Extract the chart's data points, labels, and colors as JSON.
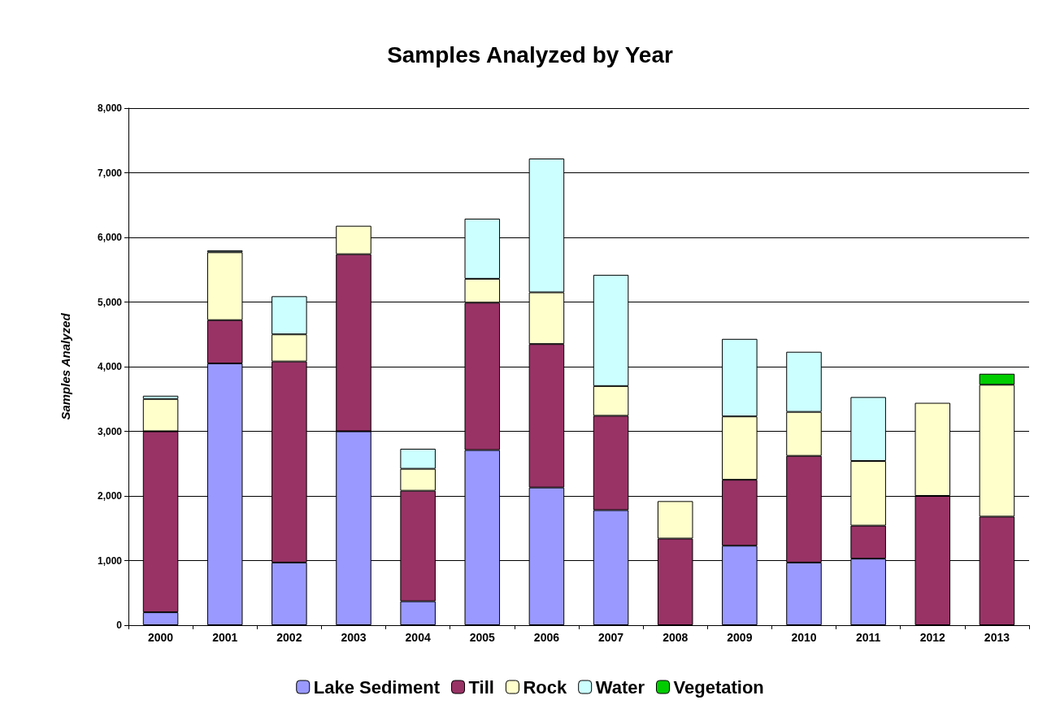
{
  "chart_data": {
    "type": "bar",
    "title": "Samples Analyzed by Year",
    "ylabel": "Samples Analyzed",
    "stacked": true,
    "grid": "y",
    "legend": "bottom",
    "categories": [
      "2000",
      "2001",
      "2002",
      "2003",
      "2004",
      "2005",
      "2006",
      "2007",
      "2008",
      "2009",
      "2010",
      "2011",
      "2012",
      "2013"
    ],
    "ylim": [
      0,
      8000
    ],
    "yticks": [
      {
        "value": 0,
        "label": "0"
      },
      {
        "value": 1000,
        "label": "1,000"
      },
      {
        "value": 2000,
        "label": "2,000"
      },
      {
        "value": 3000,
        "label": "3,000"
      },
      {
        "value": 4000,
        "label": "4,000"
      },
      {
        "value": 5000,
        "label": "5,000"
      },
      {
        "value": 6000,
        "label": "6,000"
      },
      {
        "value": 7000,
        "label": "7,000"
      },
      {
        "value": 8000,
        "label": "8,000"
      }
    ],
    "series": [
      {
        "name": "Lake Sediment",
        "color": "#9999ff",
        "values": [
          200,
          4050,
          970,
          3000,
          370,
          2710,
          2130,
          1780,
          null,
          1230,
          970,
          1030,
          null,
          null
        ]
      },
      {
        "name": "Till",
        "color": "#993366",
        "values": [
          2800,
          670,
          3110,
          2740,
          1710,
          2280,
          2220,
          1460,
          1340,
          1020,
          1650,
          510,
          2000,
          1680
        ]
      },
      {
        "name": "Rock",
        "color": "#ffffcc",
        "values": [
          500,
          1050,
          420,
          440,
          340,
          370,
          800,
          460,
          580,
          980,
          680,
          1000,
          1440,
          2040
        ]
      },
      {
        "name": "Water",
        "color": "#ccffff",
        "values": [
          50,
          30,
          590,
          null,
          310,
          930,
          2070,
          1720,
          null,
          1200,
          930,
          990,
          null,
          null
        ]
      },
      {
        "name": "Vegetation",
        "color": "#00cc00",
        "values": [
          null,
          null,
          null,
          null,
          null,
          null,
          null,
          null,
          null,
          null,
          null,
          null,
          null,
          170
        ]
      }
    ]
  }
}
